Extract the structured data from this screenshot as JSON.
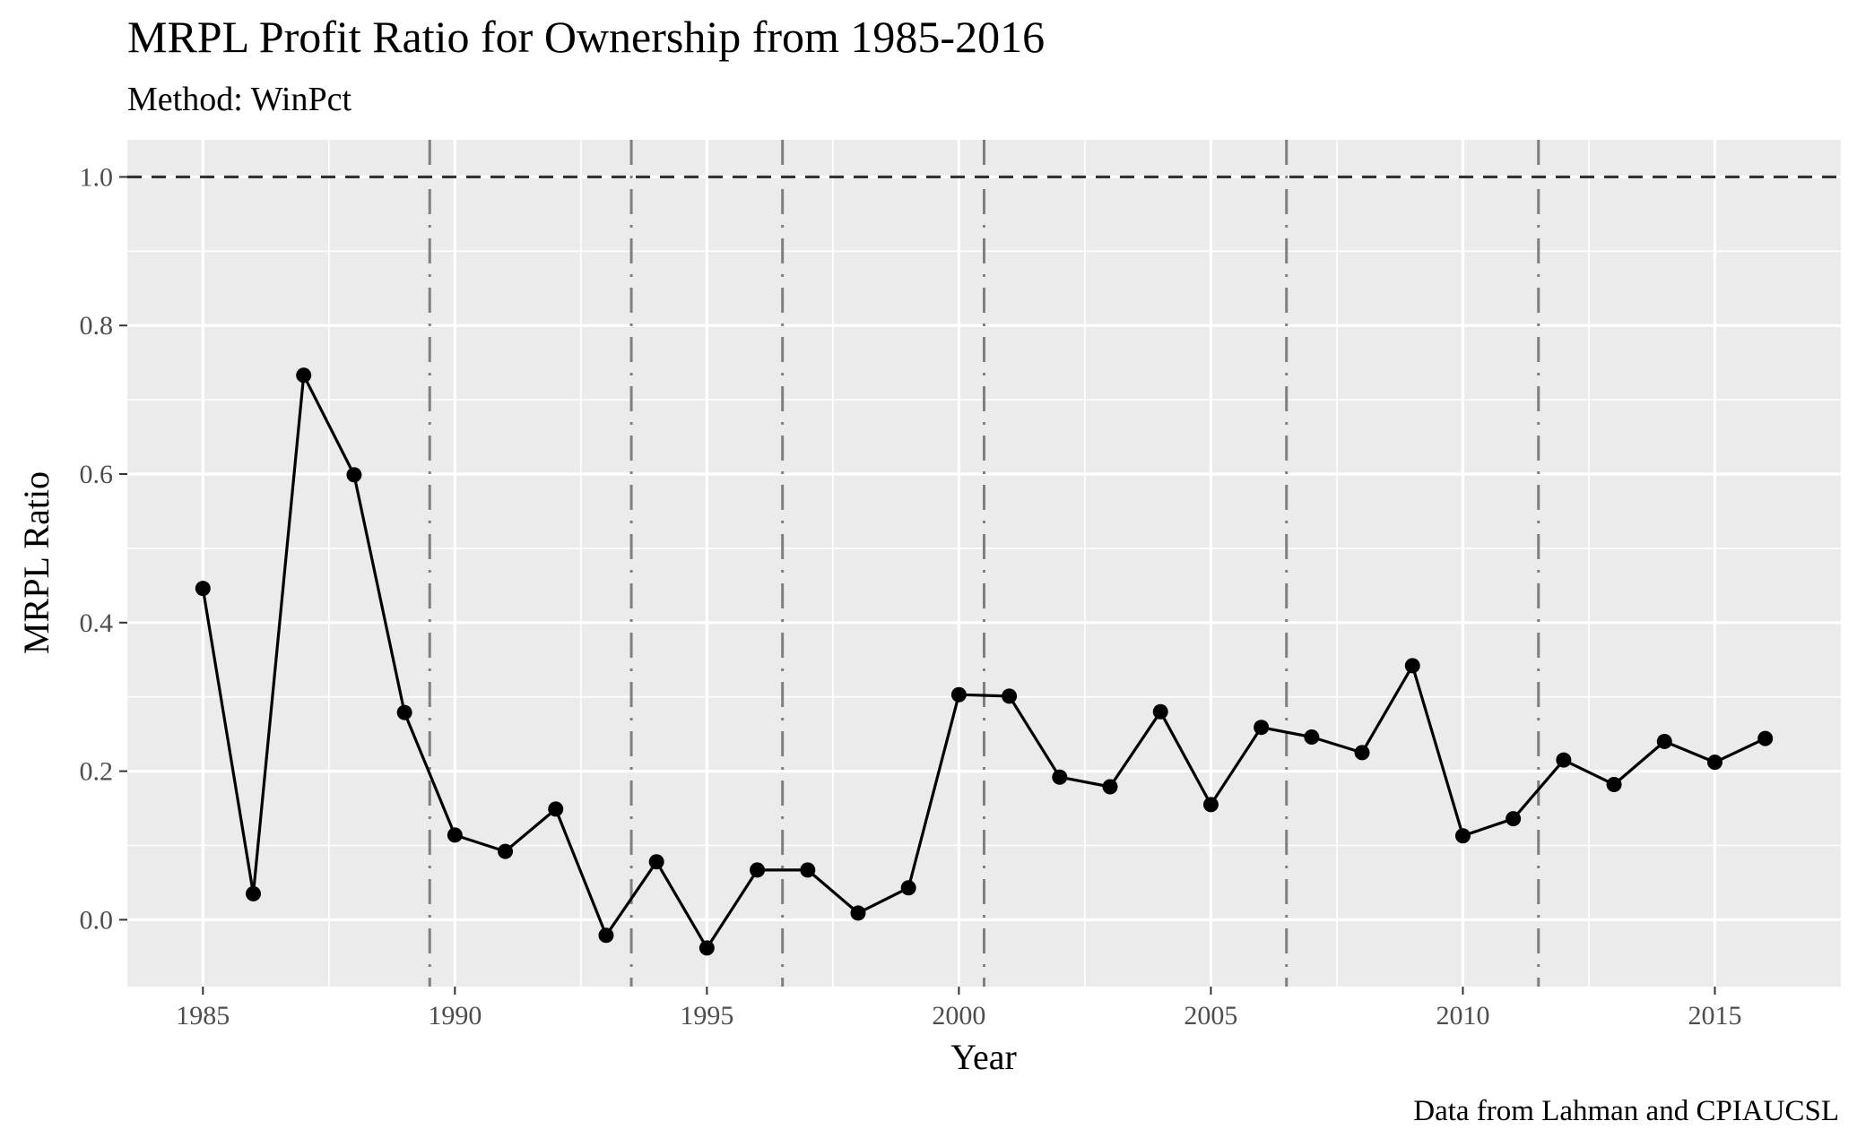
{
  "chart_data": {
    "type": "line",
    "title": "MRPL Profit Ratio for Ownership from 1985-2016",
    "subtitle": "Method: WinPct",
    "caption": "Data from Lahman and CPIAUCSL",
    "xlabel": "Year",
    "ylabel": "MRPL Ratio",
    "xlim": [
      1983.5,
      2017.5
    ],
    "ylim": [
      -0.09,
      1.05
    ],
    "x_ticks": [
      1985,
      1990,
      1995,
      2000,
      2005,
      2010,
      2015
    ],
    "x_tick_labels": [
      "1985",
      "1990",
      "1995",
      "2000",
      "2005",
      "2010",
      "2015"
    ],
    "y_ticks": [
      0.0,
      0.2,
      0.4,
      0.6,
      0.8,
      1.0
    ],
    "y_tick_labels": [
      "0.0",
      "0.2",
      "0.4",
      "0.6",
      "0.8",
      "1.0"
    ],
    "grid": true,
    "colors": {
      "panel": "#ebebeb",
      "gridline": "#ffffff",
      "series": "#000000",
      "reference_line": "#333333",
      "event_line": "#7f7f7f"
    },
    "reference_line": {
      "y": 1.0,
      "style": "dashed"
    },
    "event_lines": [
      1989.5,
      1993.5,
      1996.5,
      2000.5,
      2006.5,
      2011.5
    ],
    "series": [
      {
        "x": [
          1985,
          1986,
          1987,
          1988,
          1989,
          1990,
          1991,
          1992,
          1993,
          1994,
          1995,
          1996,
          1997,
          1998,
          1999,
          2000,
          2001,
          2002,
          2003,
          2004,
          2005,
          2006,
          2007,
          2008,
          2009,
          2010,
          2011,
          2012,
          2013,
          2014,
          2015,
          2016
        ],
        "values": [
          0.446,
          0.035,
          0.733,
          0.599,
          0.279,
          0.114,
          0.092,
          0.149,
          -0.021,
          0.078,
          -0.038,
          0.067,
          0.067,
          0.009,
          0.043,
          0.303,
          0.301,
          0.192,
          0.179,
          0.28,
          0.155,
          0.259,
          0.246,
          0.225,
          0.342,
          0.113,
          0.136,
          0.215,
          0.182,
          0.24,
          0.212,
          0.244
        ]
      }
    ]
  }
}
